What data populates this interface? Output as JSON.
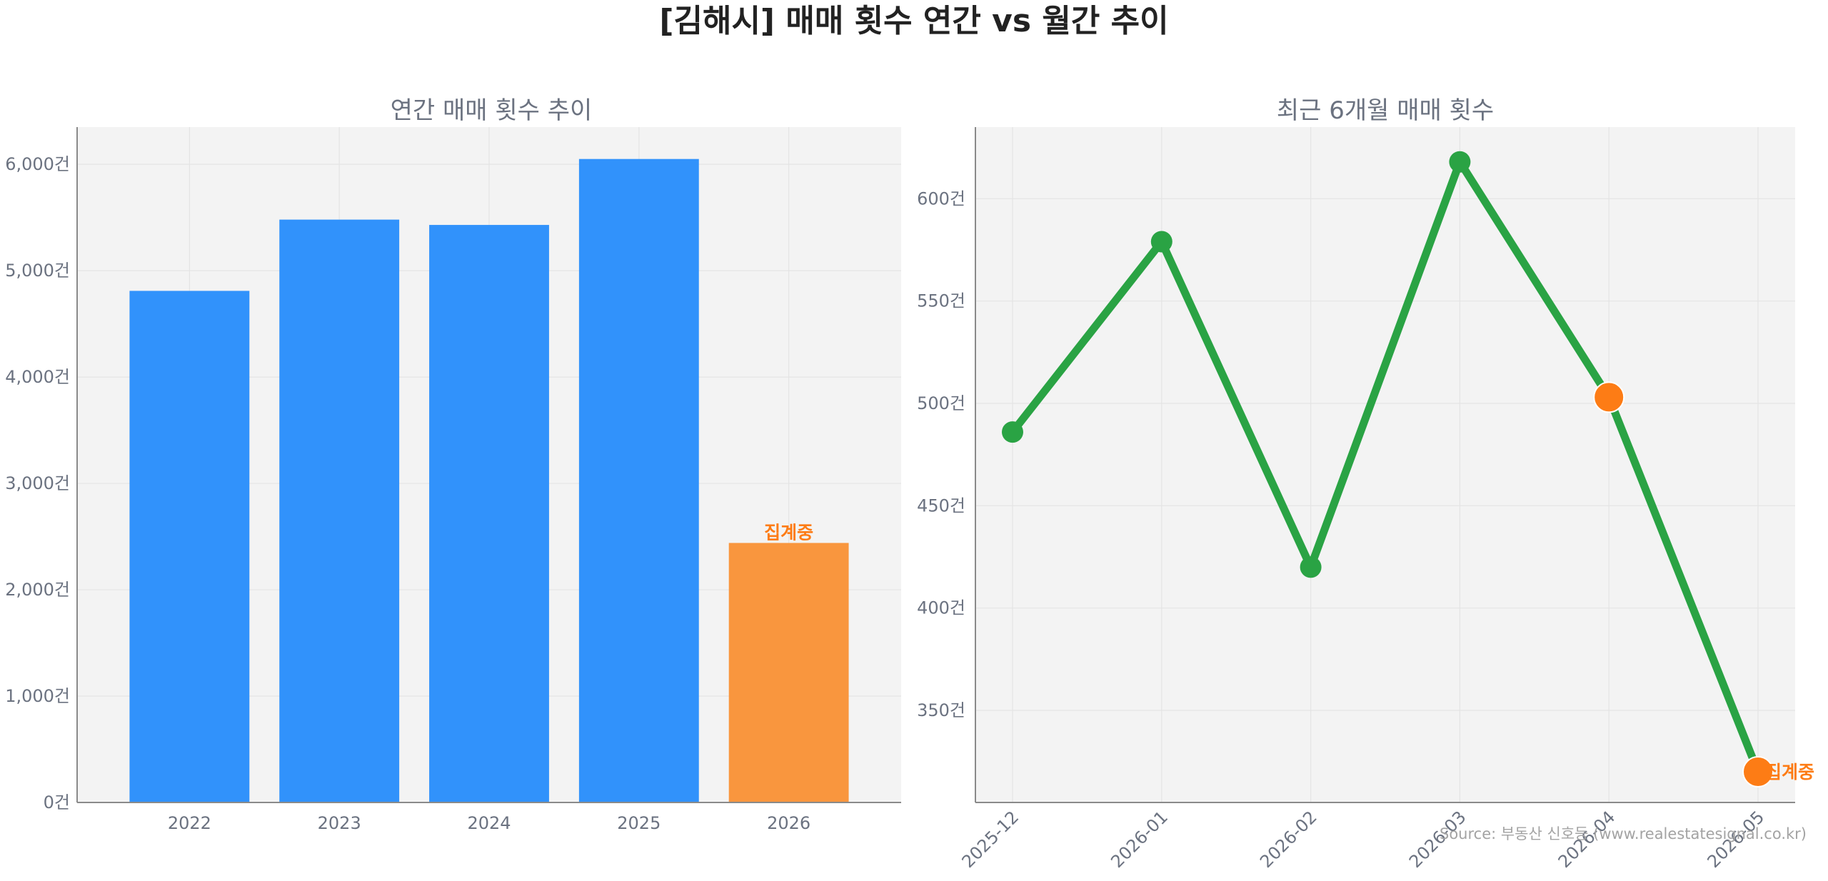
{
  "title": "[김해시] 매매 횟수 연간 vs 월간 추이",
  "source": "Source: 부동산 신호등 (www.realestatesignal.co.kr)",
  "colors": {
    "bar": "#3192fb",
    "bar_partial": "#f9963e",
    "line": "#2aa344",
    "point_partial": "#fd7c15",
    "annotation": "#fd7c15",
    "plot_bg": "#f3f3f3",
    "grid": "#e4e4e4"
  },
  "chart_data": [
    {
      "type": "bar",
      "title": "연간 매매 횟수 추이",
      "categories": [
        "2022",
        "2023",
        "2024",
        "2025",
        "2026"
      ],
      "values": [
        4810,
        5480,
        5430,
        6050,
        2440
      ],
      "partial": [
        false,
        false,
        false,
        false,
        true
      ],
      "annotation": "집계중",
      "annotation_for": "2026",
      "ylim": [
        0,
        6350
      ],
      "yticks": [
        0,
        1000,
        2000,
        3000,
        4000,
        5000,
        6000
      ],
      "ytick_labels": [
        "0건",
        "1,000건",
        "2,000건",
        "3,000건",
        "4,000건",
        "5,000건",
        "6,000건"
      ],
      "grid": true
    },
    {
      "type": "line",
      "title": "최근 6개월 매매 횟수",
      "x": [
        "2025-12",
        "2026-01",
        "2026-02",
        "2026-03",
        "2026-04",
        "2026-05"
      ],
      "values": [
        486,
        579,
        420,
        618,
        503,
        320
      ],
      "partial": [
        false,
        false,
        false,
        false,
        true,
        true
      ],
      "annotation": "집계중",
      "annotation_for": "2026-05",
      "ylim": [
        305,
        635
      ],
      "yticks": [
        350,
        400,
        450,
        500,
        550,
        600
      ],
      "ytick_labels": [
        "350건",
        "400건",
        "450건",
        "500건",
        "550건",
        "600건"
      ],
      "grid": true
    }
  ]
}
